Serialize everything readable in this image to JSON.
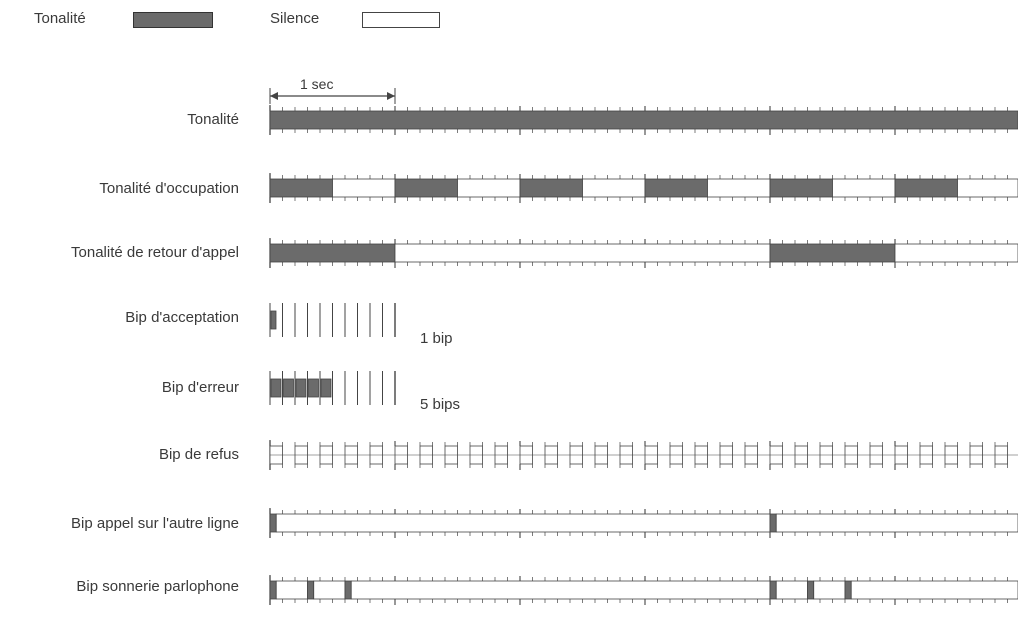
{
  "legend": {
    "tone_label": "Tonalité",
    "silence_label": "Silence"
  },
  "scale_label": "1 sec",
  "rows": [
    {
      "id": "tonalite",
      "label": "Tonalité",
      "pattern": "continuous"
    },
    {
      "id": "occupation",
      "label": "Tonalité d'occupation",
      "pattern": "busy"
    },
    {
      "id": "retour",
      "label": "Tonalité de retour d'appel",
      "pattern": "ringback"
    },
    {
      "id": "acceptation",
      "label": "Bip d'acceptation",
      "pattern": "accept",
      "note": "1 bip"
    },
    {
      "id": "erreur",
      "label": "Bip d'erreur",
      "pattern": "error",
      "note": "5 bips"
    },
    {
      "id": "refus",
      "label": "Bip de refus",
      "pattern": "reject"
    },
    {
      "id": "autre",
      "label": "Bip appel sur l'autre ligne",
      "pattern": "callwaiting"
    },
    {
      "id": "parlophone",
      "label": "Bip sonnerie parlophone",
      "pattern": "intercom"
    }
  ],
  "colors": {
    "tone": "#6b6b6b",
    "line": "#444444",
    "silence": "#ffffff"
  }
}
